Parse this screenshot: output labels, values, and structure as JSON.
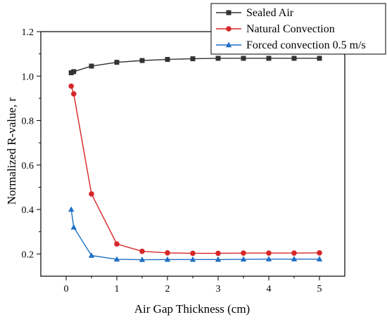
{
  "chart_data": {
    "type": "line",
    "title": "",
    "xlabel": "Air Gap Thickness (cm)",
    "ylabel": "Normalized R-value, r",
    "xlim": [
      -0.5,
      5.5
    ],
    "ylim": [
      0.1,
      1.2
    ],
    "xticks": [
      "0",
      "1",
      "2",
      "3",
      "4",
      "5"
    ],
    "yticks": [
      "0.2",
      "0.4",
      "0.6",
      "0.8",
      "1.0",
      "1.2"
    ],
    "grid": false,
    "legend_position": "top-right",
    "x": [
      0.1,
      0.15,
      0.5,
      1.0,
      1.5,
      2.0,
      2.5,
      3.0,
      3.5,
      4.0,
      4.5,
      5.0
    ],
    "series": [
      {
        "name": "Sealed Air",
        "color": "#333333",
        "marker": "square",
        "values": [
          1.015,
          1.02,
          1.045,
          1.062,
          1.07,
          1.075,
          1.078,
          1.08,
          1.08,
          1.08,
          1.08,
          1.08
        ]
      },
      {
        "name": "Natural Convection",
        "color": "#d62728",
        "marker": "circle",
        "values": [
          0.955,
          0.92,
          0.47,
          0.245,
          0.212,
          0.205,
          0.203,
          0.203,
          0.204,
          0.204,
          0.204,
          0.205
        ]
      },
      {
        "name": "Forced convection 0.5 m/s",
        "color": "#1f6fc5",
        "marker": "triangle",
        "values": [
          0.4,
          0.32,
          0.193,
          0.176,
          0.174,
          0.175,
          0.175,
          0.175,
          0.176,
          0.177,
          0.177,
          0.177
        ]
      }
    ]
  }
}
